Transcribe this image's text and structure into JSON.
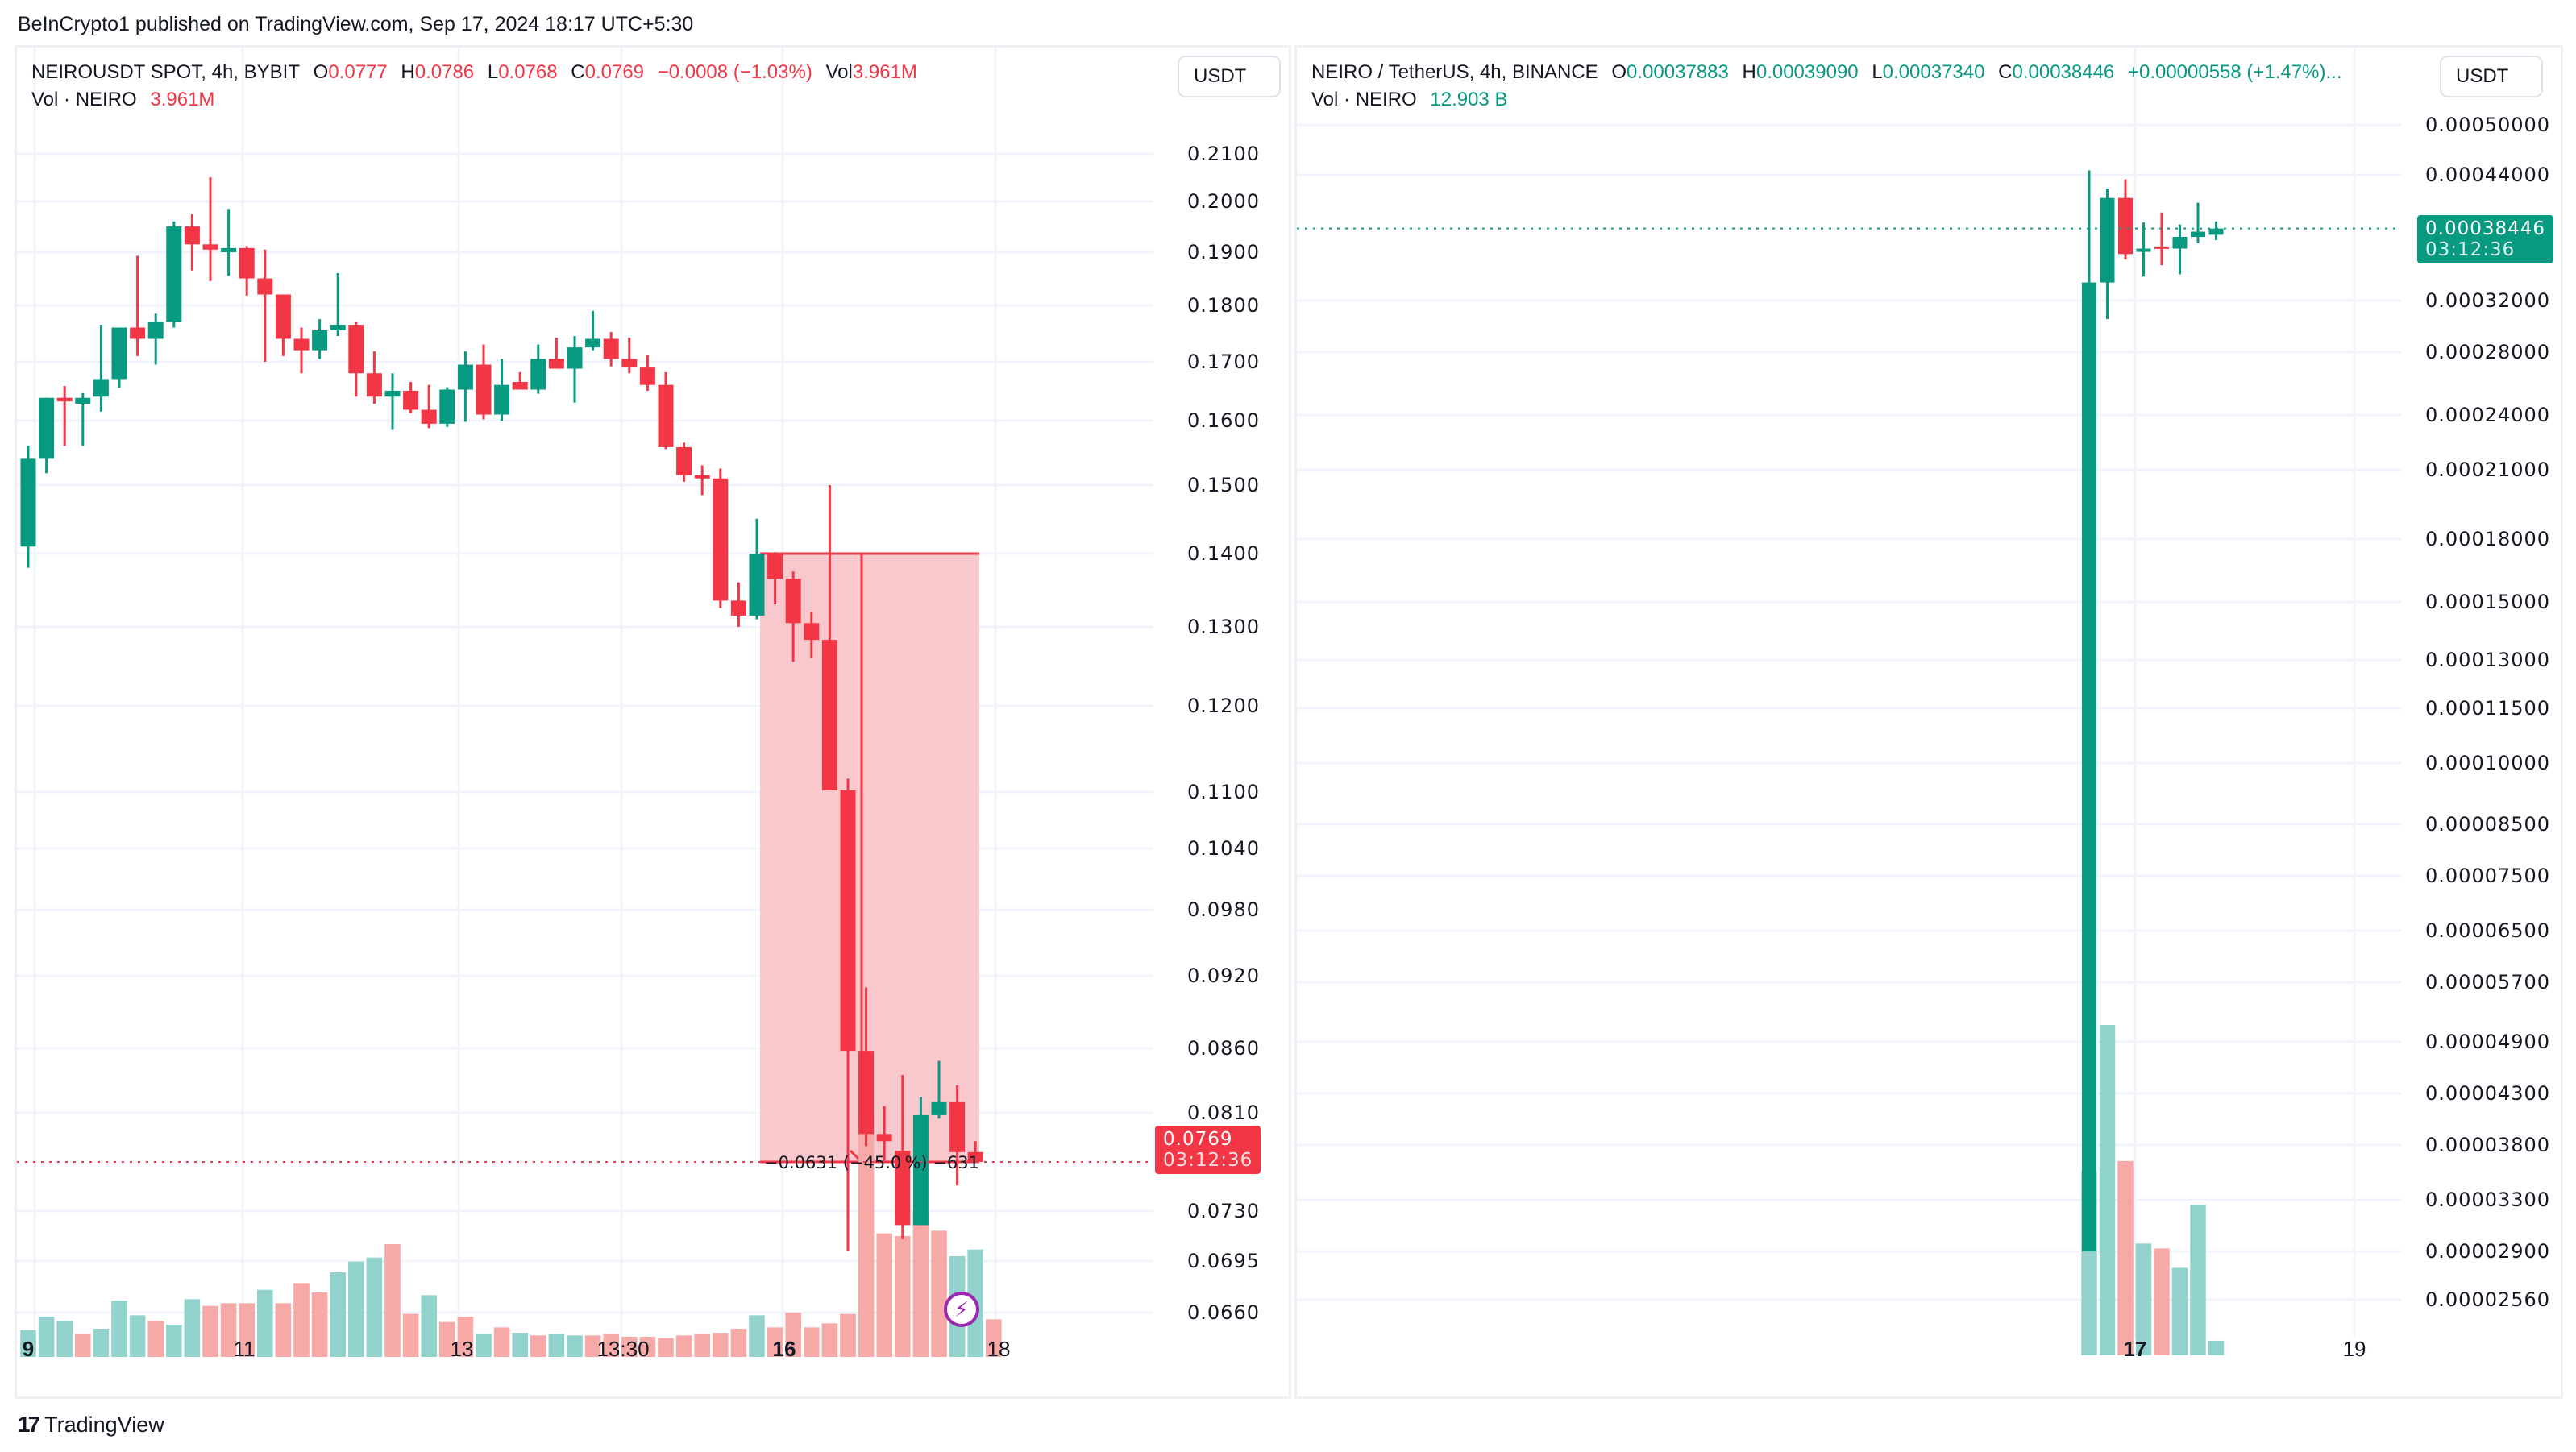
{
  "publisher": "BeInCrypto1 published on TradingView.com, Sep 17, 2024 18:17 UTC+5:30",
  "footer": {
    "logo_mark": "17",
    "logo_text": "TradingView",
    "logo_icon": "tradingview-logo-icon"
  },
  "colors": {
    "up": "#089981",
    "down": "#f23645",
    "up_vol": "#92d2cc",
    "down_vol": "#f7a9a7",
    "grid": "#f0f3fa",
    "measure_fill": "#f9c5c9",
    "measure_line": "#f23645"
  },
  "left": {
    "symbol": "NEIROUSDT SPOT, 4h, BYBIT",
    "ohlc": {
      "o_label": "O",
      "o": "0.0777",
      "h_label": "H",
      "h": "0.0786",
      "l_label": "L",
      "l": "0.0768",
      "c_label": "C",
      "c": "0.0769",
      "change": "−0.0008 (−1.03%)",
      "vol_label": "Vol",
      "vol": "3.961M"
    },
    "volume_legend": {
      "label": "Vol · NEIRO",
      "value": "3.961M"
    },
    "currency": "USDT",
    "last_price": "0.0769",
    "countdown": "03:12:36",
    "measure_label": "−0.0631 (−45.0 %) −631",
    "lightning_icon": "lightning-icon"
  },
  "right": {
    "symbol": "NEIRO / TetherUS, 4h, BINANCE",
    "ohlc": {
      "o_label": "O",
      "o": "0.00037883",
      "h_label": "H",
      "h": "0.00039090",
      "l_label": "L",
      "l": "0.00037340",
      "c_label": "C",
      "c": "0.00038446",
      "change": "+0.00000558 (+1.47%)..."
    },
    "volume_legend": {
      "label": "Vol · NEIRO",
      "value": "12.903 B"
    },
    "currency": "USDT",
    "last_price": "0.00038446",
    "countdown": "03:12:36"
  },
  "chart_data": [
    {
      "type": "candlestick",
      "title": "NEIROUSDT SPOT, 4h, BYBIT",
      "xlabel": "",
      "ylabel": "USDT",
      "scale": "log",
      "y_ticks": [
        "0.2100",
        "0.2000",
        "0.1900",
        "0.1800",
        "0.1700",
        "0.1600",
        "0.1500",
        "0.1400",
        "0.1300",
        "0.1200",
        "0.1100",
        "0.1040",
        "0.0980",
        "0.0920",
        "0.0860",
        "0.0810",
        "0.0730",
        "0.0695",
        "0.0660"
      ],
      "x_ticks": [
        "9",
        "11",
        "13",
        "13:30",
        "16",
        "18"
      ],
      "ylim": [
        0.064,
        0.222
      ],
      "candles": [
        {
          "o": 0.141,
          "h": 0.156,
          "l": 0.138,
          "c": 0.154
        },
        {
          "o": 0.154,
          "h": 0.1625,
          "l": 0.1518,
          "c": 0.1638
        },
        {
          "o": 0.1638,
          "h": 0.1658,
          "l": 0.156,
          "c": 0.1632
        },
        {
          "o": 0.1628,
          "h": 0.1646,
          "l": 0.156,
          "c": 0.1638
        },
        {
          "o": 0.164,
          "h": 0.1765,
          "l": 0.1615,
          "c": 0.167
        },
        {
          "o": 0.167,
          "h": 0.174,
          "l": 0.1655,
          "c": 0.176
        },
        {
          "o": 0.176,
          "h": 0.1893,
          "l": 0.171,
          "c": 0.174
        },
        {
          "o": 0.174,
          "h": 0.1785,
          "l": 0.1695,
          "c": 0.177
        },
        {
          "o": 0.177,
          "h": 0.196,
          "l": 0.176,
          "c": 0.195
        },
        {
          "o": 0.195,
          "h": 0.1975,
          "l": 0.1865,
          "c": 0.1915
        },
        {
          "o": 0.1915,
          "h": 0.205,
          "l": 0.1845,
          "c": 0.1905
        },
        {
          "o": 0.19,
          "h": 0.1985,
          "l": 0.1855,
          "c": 0.1908
        },
        {
          "o": 0.1908,
          "h": 0.1912,
          "l": 0.1818,
          "c": 0.185
        },
        {
          "o": 0.185,
          "h": 0.1905,
          "l": 0.17,
          "c": 0.182
        },
        {
          "o": 0.182,
          "h": 0.182,
          "l": 0.171,
          "c": 0.174
        },
        {
          "o": 0.174,
          "h": 0.176,
          "l": 0.168,
          "c": 0.172
        },
        {
          "o": 0.172,
          "h": 0.1775,
          "l": 0.1705,
          "c": 0.1755
        },
        {
          "o": 0.1755,
          "h": 0.186,
          "l": 0.1745,
          "c": 0.1765
        },
        {
          "o": 0.1765,
          "h": 0.177,
          "l": 0.164,
          "c": 0.168
        },
        {
          "o": 0.168,
          "h": 0.1718,
          "l": 0.1628,
          "c": 0.164
        },
        {
          "o": 0.164,
          "h": 0.168,
          "l": 0.1585,
          "c": 0.165
        },
        {
          "o": 0.165,
          "h": 0.1665,
          "l": 0.1612,
          "c": 0.1618
        },
        {
          "o": 0.1618,
          "h": 0.166,
          "l": 0.1588,
          "c": 0.1595
        },
        {
          "o": 0.1595,
          "h": 0.1656,
          "l": 0.159,
          "c": 0.1652
        },
        {
          "o": 0.1652,
          "h": 0.1718,
          "l": 0.1598,
          "c": 0.1695
        },
        {
          "o": 0.1695,
          "h": 0.173,
          "l": 0.1602,
          "c": 0.161
        },
        {
          "o": 0.161,
          "h": 0.1705,
          "l": 0.16,
          "c": 0.166
        },
        {
          "o": 0.1665,
          "h": 0.1682,
          "l": 0.1655,
          "c": 0.1652
        },
        {
          "o": 0.1652,
          "h": 0.173,
          "l": 0.1645,
          "c": 0.1705
        },
        {
          "o": 0.1705,
          "h": 0.1742,
          "l": 0.169,
          "c": 0.1688
        },
        {
          "o": 0.1688,
          "h": 0.1745,
          "l": 0.163,
          "c": 0.1725
        },
        {
          "o": 0.1725,
          "h": 0.179,
          "l": 0.172,
          "c": 0.174
        },
        {
          "o": 0.174,
          "h": 0.1752,
          "l": 0.1692,
          "c": 0.1705
        },
        {
          "o": 0.1705,
          "h": 0.1742,
          "l": 0.168,
          "c": 0.169
        },
        {
          "o": 0.169,
          "h": 0.1712,
          "l": 0.165,
          "c": 0.166
        },
        {
          "o": 0.166,
          "h": 0.1682,
          "l": 0.1555,
          "c": 0.1558
        },
        {
          "o": 0.1558,
          "h": 0.1565,
          "l": 0.1505,
          "c": 0.1515
        },
        {
          "o": 0.1515,
          "h": 0.153,
          "l": 0.1485,
          "c": 0.151
        },
        {
          "o": 0.151,
          "h": 0.1525,
          "l": 0.1325,
          "c": 0.1335
        },
        {
          "o": 0.1335,
          "h": 0.136,
          "l": 0.13,
          "c": 0.1315
        },
        {
          "o": 0.1315,
          "h": 0.145,
          "l": 0.131,
          "c": 0.14
        },
        {
          "o": 0.14,
          "h": 0.1402,
          "l": 0.133,
          "c": 0.1365
        },
        {
          "o": 0.1365,
          "h": 0.1375,
          "l": 0.1255,
          "c": 0.1305
        },
        {
          "o": 0.1305,
          "h": 0.132,
          "l": 0.126,
          "c": 0.1283
        },
        {
          "o": 0.1283,
          "h": 0.15,
          "l": 0.1102,
          "c": 0.1102
        },
        {
          "o": 0.1102,
          "h": 0.1115,
          "l": 0.0702,
          "c": 0.0858
        },
        {
          "o": 0.0858,
          "h": 0.091,
          "l": 0.0782,
          "c": 0.0792
        },
        {
          "o": 0.0792,
          "h": 0.0815,
          "l": 0.077,
          "c": 0.0786
        },
        {
          "o": 0.0778,
          "h": 0.0839,
          "l": 0.071,
          "c": 0.072
        },
        {
          "o": 0.072,
          "h": 0.0822,
          "l": 0.072,
          "c": 0.0808
        },
        {
          "o": 0.0808,
          "h": 0.085,
          "l": 0.0805,
          "c": 0.0818
        },
        {
          "o": 0.0818,
          "h": 0.0831,
          "l": 0.075,
          "c": 0.0777
        },
        {
          "o": 0.0777,
          "h": 0.0786,
          "l": 0.0768,
          "c": 0.0769
        }
      ],
      "volume": [
        20,
        30,
        27,
        17,
        21,
        42,
        31,
        27,
        24,
        43,
        38,
        40,
        40,
        50,
        40,
        55,
        48,
        63,
        71,
        74,
        84,
        32,
        46,
        26,
        30,
        17,
        22,
        18,
        16,
        17,
        16,
        16,
        17,
        15,
        15,
        14,
        16,
        17,
        18,
        21,
        31,
        22,
        33,
        22,
        25,
        32,
        180,
        92,
        90,
        108,
        94,
        75,
        80,
        28
      ],
      "volume_up": [
        true,
        true,
        true,
        false,
        true,
        true,
        true,
        false,
        true,
        true,
        false,
        false,
        false,
        true,
        false,
        false,
        false,
        true,
        true,
        true,
        false,
        false,
        true,
        false,
        false,
        true,
        false,
        true,
        false,
        true,
        true,
        false,
        false,
        false,
        false,
        false,
        false,
        false,
        false,
        false,
        true,
        false,
        false,
        false,
        false,
        false,
        false,
        false,
        false,
        false,
        false,
        true,
        true,
        false
      ],
      "measure": {
        "from_price": 0.14,
        "to_price": 0.0769,
        "change": "-0.0631",
        "percent": "-45.0%",
        "bars": "-631"
      }
    },
    {
      "type": "candlestick",
      "title": "NEIRO / TetherUS, 4h, BINANCE",
      "xlabel": "",
      "ylabel": "USDT",
      "scale": "log",
      "y_ticks": [
        "0.00050000",
        "0.00044000",
        "0.00032000",
        "0.00028000",
        "0.00024000",
        "0.00021000",
        "0.00018000",
        "0.00015000",
        "0.00013000",
        "0.00011500",
        "0.00010000",
        "0.00008500",
        "0.00007500",
        "0.00006500",
        "0.00005700",
        "0.00004900",
        "0.00004300",
        "0.00003800",
        "0.00003300",
        "0.00002900",
        "0.00002560"
      ],
      "x_ticks": [
        "17",
        "19"
      ],
      "candles": [
        {
          "o": 2.9e-05,
          "h": 0.000445,
          "l": 2.9e-05,
          "c": 0.000335
        },
        {
          "o": 0.000335,
          "h": 0.000425,
          "l": 0.000305,
          "c": 0.000415
        },
        {
          "o": 0.000415,
          "h": 0.000435,
          "l": 0.000355,
          "c": 0.00036
        },
        {
          "o": 0.000362,
          "h": 0.00039,
          "l": 0.00034,
          "c": 0.000365
        },
        {
          "o": 0.000367,
          "h": 0.0004,
          "l": 0.00035,
          "c": 0.000365
        },
        {
          "o": 0.000365,
          "h": 0.000388,
          "l": 0.000342,
          "c": 0.000376
        },
        {
          "o": 0.000376,
          "h": 0.00041,
          "l": 0.00037,
          "c": 0.000381
        },
        {
          "o": 0.000378,
          "h": 0.000391,
          "l": 0.000373,
          "c": 0.000384
        }
      ],
      "volume": [
        38,
        68,
        40,
        23,
        22,
        18,
        31,
        3
      ],
      "volume_up": [
        true,
        true,
        false,
        true,
        false,
        true,
        true,
        true
      ]
    }
  ]
}
